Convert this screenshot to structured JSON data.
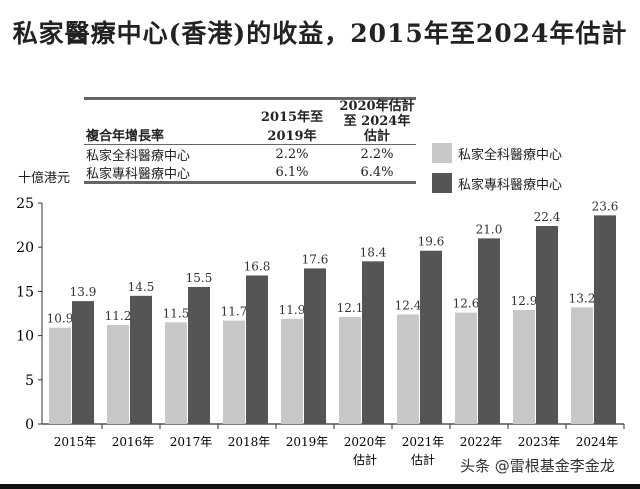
{
  "chart_data": {
    "type": "bar",
    "title": "私家醫療中心(香港)的收益，2015年至2024年估計",
    "ylabel": "十億港元",
    "ylim": [
      0,
      25
    ],
    "yticks": [
      0,
      5,
      10,
      15,
      20,
      25
    ],
    "categories": [
      [
        "2015年"
      ],
      [
        "2016年"
      ],
      [
        "2017年"
      ],
      [
        "2018年"
      ],
      [
        "2019年"
      ],
      [
        "2020年",
        "估計"
      ],
      [
        "2021年",
        "估計"
      ],
      [
        "2022年"
      ],
      [
        "2023年"
      ],
      [
        "2024年"
      ]
    ],
    "series": [
      {
        "name": "私家全科醫療中心",
        "color": "#c8c8c8",
        "values": [
          10.9,
          11.2,
          11.5,
          11.7,
          11.9,
          12.1,
          12.4,
          12.6,
          12.9,
          13.2
        ]
      },
      {
        "name": "私家專科醫療中心",
        "color": "#555555",
        "values": [
          13.9,
          14.5,
          15.5,
          16.8,
          17.6,
          18.4,
          19.6,
          21.0,
          22.4,
          23.6
        ]
      }
    ],
    "legend": "right",
    "grid": false,
    "cagr_table": {
      "header": [
        "複合年增長率",
        "2015年至2019年",
        "2020年估計至 2024年估計"
      ],
      "rows": [
        [
          "私家全科醫療中心",
          "2.2%",
          "2.2%"
        ],
        [
          "私家專科醫療中心",
          "6.1%",
          "6.4%"
        ]
      ]
    }
  },
  "watermark": "头条 @雷根基金李金龙"
}
